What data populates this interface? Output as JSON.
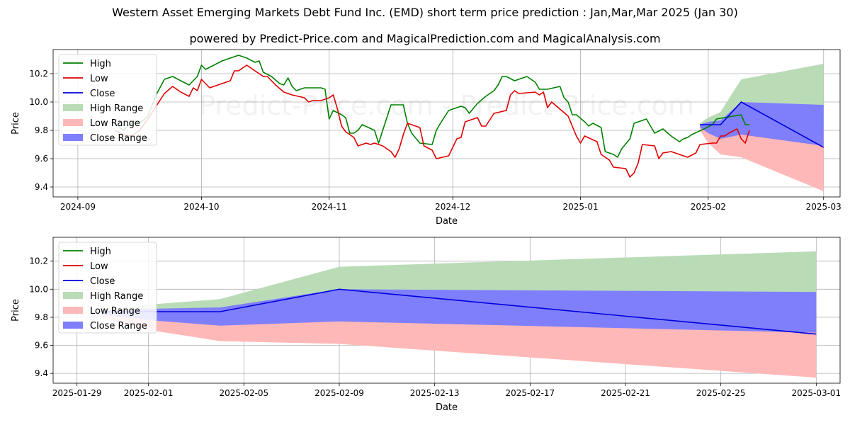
{
  "header": {
    "title": "Western Asset Emerging Markets Debt Fund Inc. (EMD) short term price prediction : Jan,Mar,Mar 2025 (Jan 30)",
    "subtitle": "powered by Predict-Price.com and MagicalPrediction.com and MagicalAnalysis.com"
  },
  "watermark": "Predict-Price.com - Predict-Price.com",
  "colors": {
    "high": "#008000",
    "low": "#e00000",
    "close": "#0000dd",
    "high_range": "#b9dcb7",
    "low_range": "#ffb8b8",
    "close_range": "#7f7ffb"
  },
  "chart_data": [
    {
      "type": "line",
      "xlabel": "Date",
      "ylabel": "Price",
      "xlim": [
        "2024-08-26",
        "2025-03-05"
      ],
      "ylim": [
        9.33,
        10.37
      ],
      "grid": true,
      "legend_placement": "top-left",
      "x_ticks": [
        "2024-09",
        "2024-10",
        "2024-11",
        "2024-12",
        "2025-01",
        "2025-02",
        "2025-03"
      ],
      "y_ticks": [
        9.4,
        9.6,
        9.8,
        10.0,
        10.2
      ],
      "legend": [
        "High",
        "Low",
        "Close",
        "High Range",
        "Low Range",
        "Close Range"
      ],
      "series": [
        {
          "name": "High",
          "points": [
            [
              "2024-09-10",
              9.85
            ],
            [
              "2024-09-12",
              9.8
            ],
            [
              "2024-09-14",
              9.85
            ],
            [
              "2024-09-16",
              9.85
            ],
            [
              "2024-09-18",
              9.9
            ],
            [
              "2024-09-20",
              10.05
            ],
            [
              "2024-09-22",
              10.16
            ],
            [
              "2024-09-24",
              10.18
            ],
            [
              "2024-09-26",
              10.15
            ],
            [
              "2024-09-28",
              10.12
            ],
            [
              "2024-09-30",
              10.18
            ],
            [
              "2024-10-01",
              10.26
            ],
            [
              "2024-10-02",
              10.23
            ],
            [
              "2024-10-04",
              10.26
            ],
            [
              "2024-10-06",
              10.29
            ],
            [
              "2024-10-08",
              10.31
            ],
            [
              "2024-10-10",
              10.33
            ],
            [
              "2024-10-12",
              10.31
            ],
            [
              "2024-10-14",
              10.28
            ],
            [
              "2024-10-15",
              10.29
            ],
            [
              "2024-10-16",
              10.21
            ],
            [
              "2024-10-18",
              10.18
            ],
            [
              "2024-10-20",
              10.13
            ],
            [
              "2024-10-21",
              10.12
            ],
            [
              "2024-10-22",
              10.17
            ],
            [
              "2024-10-23",
              10.11
            ],
            [
              "2024-10-24",
              10.08
            ],
            [
              "2024-10-26",
              10.1
            ],
            [
              "2024-10-28",
              10.1
            ],
            [
              "2024-10-30",
              10.1
            ],
            [
              "2024-10-31",
              10.09
            ],
            [
              "2024-11-01",
              9.88
            ],
            [
              "2024-11-02",
              9.94
            ],
            [
              "2024-11-04",
              9.91
            ],
            [
              "2024-11-05",
              9.89
            ],
            [
              "2024-11-06",
              9.78
            ],
            [
              "2024-11-07",
              9.78
            ],
            [
              "2024-11-08",
              9.8
            ],
            [
              "2024-11-09",
              9.84
            ],
            [
              "2024-11-12",
              9.8
            ],
            [
              "2024-11-13",
              9.71
            ],
            [
              "2024-11-14",
              9.8
            ],
            [
              "2024-11-16",
              9.98
            ],
            [
              "2024-11-19",
              9.98
            ],
            [
              "2024-11-20",
              9.85
            ],
            [
              "2024-11-21",
              9.78
            ],
            [
              "2024-11-23",
              9.71
            ],
            [
              "2024-11-26",
              9.7
            ],
            [
              "2024-11-27",
              9.8
            ],
            [
              "2024-11-28",
              9.85
            ],
            [
              "2024-11-30",
              9.94
            ],
            [
              "2024-12-02",
              9.96
            ],
            [
              "2024-12-03",
              9.97
            ],
            [
              "2024-12-04",
              9.96
            ],
            [
              "2024-12-05",
              9.92
            ],
            [
              "2024-12-07",
              9.99
            ],
            [
              "2024-12-09",
              10.04
            ],
            [
              "2024-12-11",
              10.08
            ],
            [
              "2024-12-12",
              10.12
            ],
            [
              "2024-12-13",
              10.18
            ],
            [
              "2024-12-14",
              10.18
            ],
            [
              "2024-12-16",
              10.15
            ],
            [
              "2024-12-19",
              10.18
            ],
            [
              "2024-12-21",
              10.14
            ],
            [
              "2024-12-22",
              10.09
            ],
            [
              "2024-12-24",
              10.09
            ],
            [
              "2024-12-27",
              10.11
            ],
            [
              "2024-12-28",
              10.03
            ],
            [
              "2024-12-29",
              10.0
            ],
            [
              "2024-12-30",
              9.91
            ],
            [
              "2024-12-31",
              9.91
            ],
            [
              "2025-01-02",
              9.86
            ],
            [
              "2025-01-03",
              9.83
            ],
            [
              "2025-01-04",
              9.85
            ],
            [
              "2025-01-06",
              9.82
            ],
            [
              "2025-01-07",
              9.65
            ],
            [
              "2025-01-09",
              9.63
            ],
            [
              "2025-01-10",
              9.61
            ],
            [
              "2025-01-11",
              9.67
            ],
            [
              "2025-01-13",
              9.74
            ],
            [
              "2025-01-14",
              9.85
            ],
            [
              "2025-01-17",
              9.88
            ],
            [
              "2025-01-19",
              9.78
            ],
            [
              "2025-01-21",
              9.81
            ],
            [
              "2025-01-23",
              9.76
            ],
            [
              "2025-01-25",
              9.72
            ],
            [
              "2025-01-26",
              9.74
            ],
            [
              "2025-01-27",
              9.75
            ],
            [
              "2025-01-28",
              9.77
            ],
            [
              "2025-01-31",
              9.81
            ],
            [
              "2025-02-02",
              9.84
            ],
            [
              "2025-02-03",
              9.88
            ],
            [
              "2025-02-05",
              9.89
            ],
            [
              "2025-02-07",
              9.9
            ],
            [
              "2025-02-09",
              9.91
            ],
            [
              "2025-02-10",
              9.84
            ],
            [
              "2025-02-11",
              9.84
            ]
          ]
        },
        {
          "name": "Low",
          "points": [
            [
              "2024-09-10",
              9.8
            ],
            [
              "2024-09-12",
              9.77
            ],
            [
              "2024-09-14",
              9.76
            ],
            [
              "2024-09-16",
              9.8
            ],
            [
              "2024-09-18",
              9.88
            ],
            [
              "2024-09-20",
              9.97
            ],
            [
              "2024-09-22",
              10.06
            ],
            [
              "2024-09-24",
              10.11
            ],
            [
              "2024-09-26",
              10.07
            ],
            [
              "2024-09-28",
              10.04
            ],
            [
              "2024-09-29",
              10.1
            ],
            [
              "2024-09-30",
              10.08
            ],
            [
              "2024-10-01",
              10.16
            ],
            [
              "2024-10-03",
              10.1
            ],
            [
              "2024-10-05",
              10.12
            ],
            [
              "2024-10-08",
              10.15
            ],
            [
              "2024-10-09",
              10.22
            ],
            [
              "2024-10-10",
              10.22
            ],
            [
              "2024-10-12",
              10.26
            ],
            [
              "2024-10-14",
              10.22
            ],
            [
              "2024-10-16",
              10.18
            ],
            [
              "2024-10-17",
              10.18
            ],
            [
              "2024-10-19",
              10.12
            ],
            [
              "2024-10-21",
              10.07
            ],
            [
              "2024-10-23",
              10.05
            ],
            [
              "2024-10-26",
              10.03
            ],
            [
              "2024-10-27",
              10.0
            ],
            [
              "2024-10-28",
              10.01
            ],
            [
              "2024-10-30",
              10.01
            ],
            [
              "2024-11-01",
              10.03
            ],
            [
              "2024-11-02",
              10.05
            ],
            [
              "2024-11-03",
              9.95
            ],
            [
              "2024-11-04",
              9.83
            ],
            [
              "2024-11-05",
              9.79
            ],
            [
              "2024-11-07",
              9.75
            ],
            [
              "2024-11-08",
              9.69
            ],
            [
              "2024-11-10",
              9.71
            ],
            [
              "2024-11-11",
              9.7
            ],
            [
              "2024-11-12",
              9.71
            ],
            [
              "2024-11-14",
              9.69
            ],
            [
              "2024-11-16",
              9.65
            ],
            [
              "2024-11-17",
              9.61
            ],
            [
              "2024-11-18",
              9.67
            ],
            [
              "2024-11-19",
              9.77
            ],
            [
              "2024-11-20",
              9.85
            ],
            [
              "2024-11-23",
              9.82
            ],
            [
              "2024-11-24",
              9.69
            ],
            [
              "2024-11-26",
              9.66
            ],
            [
              "2024-11-27",
              9.6
            ],
            [
              "2024-11-30",
              9.62
            ],
            [
              "2024-12-02",
              9.74
            ],
            [
              "2024-12-03",
              9.75
            ],
            [
              "2024-12-04",
              9.86
            ],
            [
              "2024-12-07",
              9.89
            ],
            [
              "2024-12-08",
              9.83
            ],
            [
              "2024-12-09",
              9.83
            ],
            [
              "2024-12-11",
              9.92
            ],
            [
              "2024-12-14",
              9.94
            ],
            [
              "2024-12-15",
              10.05
            ],
            [
              "2024-12-16",
              10.08
            ],
            [
              "2024-12-17",
              10.06
            ],
            [
              "2024-12-21",
              10.07
            ],
            [
              "2024-12-22",
              10.05
            ],
            [
              "2024-12-23",
              10.07
            ],
            [
              "2024-12-24",
              9.96
            ],
            [
              "2024-12-25",
              10.0
            ],
            [
              "2024-12-27",
              9.95
            ],
            [
              "2024-12-29",
              9.9
            ],
            [
              "2024-12-31",
              9.76
            ],
            [
              "2025-01-01",
              9.71
            ],
            [
              "2025-01-02",
              9.76
            ],
            [
              "2025-01-05",
              9.72
            ],
            [
              "2025-01-06",
              9.63
            ],
            [
              "2025-01-08",
              9.59
            ],
            [
              "2025-01-09",
              9.54
            ],
            [
              "2025-01-12",
              9.53
            ],
            [
              "2025-01-13",
              9.47
            ],
            [
              "2025-01-14",
              9.5
            ],
            [
              "2025-01-15",
              9.57
            ],
            [
              "2025-01-16",
              9.7
            ],
            [
              "2025-01-19",
              9.69
            ],
            [
              "2025-01-20",
              9.6
            ],
            [
              "2025-01-21",
              9.64
            ],
            [
              "2025-01-23",
              9.65
            ],
            [
              "2025-01-25",
              9.63
            ],
            [
              "2025-01-27",
              9.61
            ],
            [
              "2025-01-29",
              9.64
            ],
            [
              "2025-01-30",
              9.7
            ],
            [
              "2025-02-02",
              9.71
            ],
            [
              "2025-02-03",
              9.71
            ],
            [
              "2025-02-04",
              9.76
            ],
            [
              "2025-02-05",
              9.76
            ],
            [
              "2025-02-06",
              9.78
            ],
            [
              "2025-02-08",
              9.81
            ],
            [
              "2025-02-09",
              9.74
            ],
            [
              "2025-02-10",
              9.71
            ],
            [
              "2025-02-11",
              9.8
            ]
          ]
        }
      ]
    },
    {
      "type": "line",
      "xlabel": "Date",
      "ylabel": "Price",
      "xlim": [
        "2025-01-28",
        "2025-03-02"
      ],
      "ylim": [
        9.33,
        10.37
      ],
      "grid": true,
      "legend_placement": "top-left",
      "x_ticks": [
        "2025-01-29",
        "2025-02-01",
        "2025-02-05",
        "2025-02-09",
        "2025-02-13",
        "2025-02-17",
        "2025-02-21",
        "2025-02-25",
        "2025-03-01"
      ],
      "y_ticks": [
        9.4,
        9.6,
        9.8,
        10.0,
        10.2
      ],
      "legend": [
        "High",
        "Low",
        "Close",
        "High Range",
        "Low Range",
        "Close Range"
      ],
      "forecast": {
        "dates": [
          "2025-01-30",
          "2025-02-01",
          "2025-02-04",
          "2025-02-09",
          "2025-03-01"
        ],
        "close": [
          9.84,
          9.84,
          9.84,
          10.0,
          9.68
        ],
        "high_range": {
          "upper": [
            9.85,
            9.89,
            9.93,
            10.16,
            10.27
          ],
          "lower": [
            9.84,
            9.84,
            9.84,
            9.84,
            9.84
          ]
        },
        "low_range": {
          "upper": [
            9.84,
            9.8,
            9.8,
            9.8,
            9.8
          ],
          "lower": [
            9.8,
            9.71,
            9.63,
            9.61,
            9.37
          ]
        },
        "close_range": {
          "upper": [
            9.84,
            9.86,
            9.87,
            10.0,
            9.98
          ],
          "lower": [
            9.82,
            9.78,
            9.74,
            9.77,
            9.69
          ]
        }
      }
    }
  ]
}
